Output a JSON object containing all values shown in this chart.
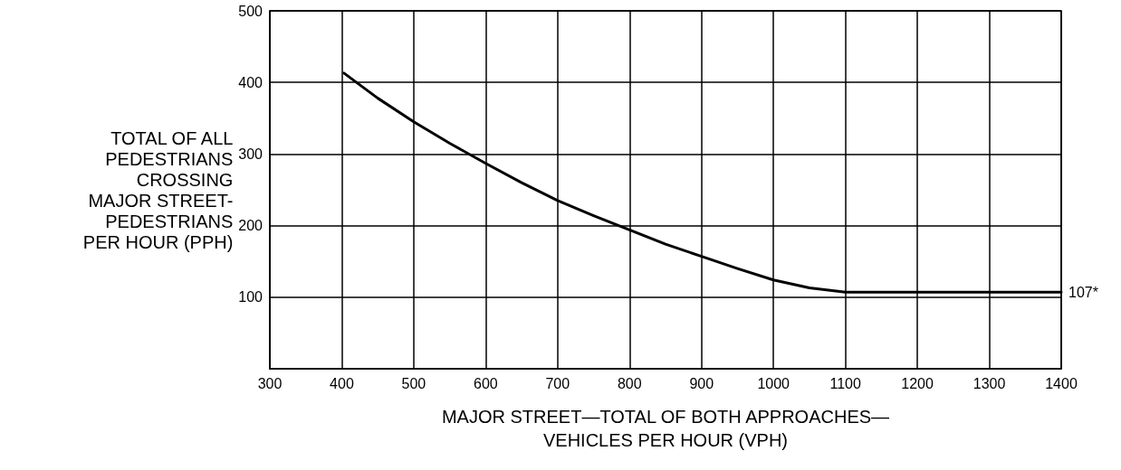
{
  "chart_data": {
    "type": "line",
    "ylabel": "TOTAL OF ALL\nPEDESTRIANS\nCROSSING\nMAJOR STREET-\nPEDESTRIANS\nPER HOUR (PPH)",
    "xlabel": "MAJOR STREET—TOTAL OF BOTH APPROACHES—\nVEHICLES PER HOUR (VPH)",
    "x": [
      403,
      450,
      500,
      550,
      600,
      650,
      700,
      750,
      800,
      850,
      900,
      950,
      1000,
      1050,
      1100,
      1200,
      1300,
      1400
    ],
    "series": [
      {
        "color": "#000000",
        "values": [
          413,
          378,
          345,
          315,
          287,
          260,
          235,
          214,
          194,
          174,
          157,
          140,
          124,
          113,
          107,
          107,
          107,
          107
        ]
      }
    ],
    "xlim": [
      300,
      1400
    ],
    "xticks": [
      300,
      400,
      500,
      600,
      700,
      800,
      900,
      1000,
      1100,
      1200,
      1300,
      1400
    ],
    "ylim": [
      0,
      500
    ],
    "yticks": [
      100,
      200,
      300,
      400,
      500
    ],
    "grid": true,
    "marker": "none",
    "line_style": "solid",
    "annotations": [
      {
        "text": "107*",
        "x": 1400,
        "y": 107
      }
    ]
  }
}
